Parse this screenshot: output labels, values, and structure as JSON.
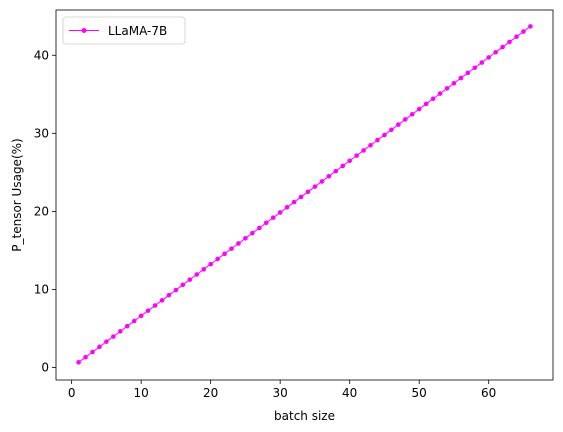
{
  "chart_data": {
    "type": "line",
    "title": "",
    "xlabel": "batch size",
    "ylabel": "P_tensor Usage(%)",
    "xlim": [
      -2.25,
      69.25
    ],
    "ylim": [
      -1.6,
      45.8
    ],
    "xticks": [
      0,
      10,
      20,
      30,
      40,
      50,
      60
    ],
    "yticks": [
      0,
      10,
      20,
      30,
      40
    ],
    "grid": false,
    "legend_position": "top-left",
    "series": [
      {
        "name": "LLaMA-7B",
        "color": "#ff00ff",
        "marker": "circle",
        "x_start": 1,
        "x_end": 66,
        "x_step": 1,
        "y_start": 0.66,
        "y_end": 43.7
      }
    ]
  }
}
